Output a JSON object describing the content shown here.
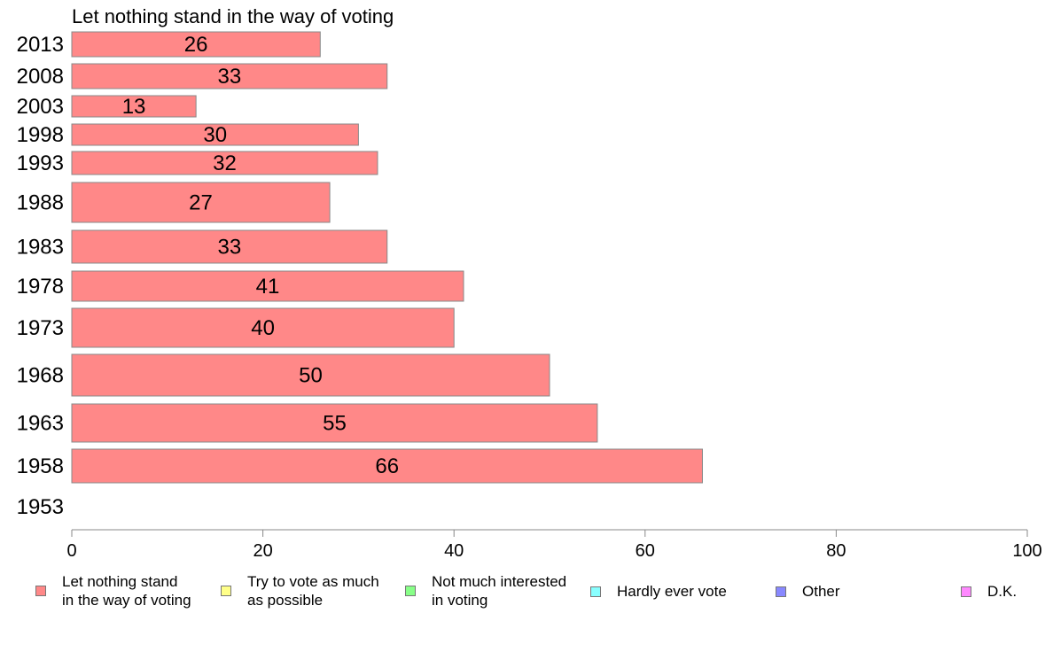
{
  "chart_data": {
    "type": "bar",
    "orientation": "horizontal",
    "title": "Let nothing stand in the way of voting",
    "categories": [
      "2013",
      "2008",
      "2003",
      "1998",
      "1993",
      "1988",
      "1983",
      "1978",
      "1973",
      "1968",
      "1963",
      "1958",
      "1953"
    ],
    "series": [
      {
        "name": "Let nothing stand\nin the way of voting",
        "color": "#ff8888",
        "values": [
          26,
          33,
          13,
          30,
          32,
          27,
          33,
          41,
          40,
          50,
          55,
          66,
          null
        ]
      }
    ],
    "data_labels": [
      "26",
      "33",
      "13",
      "30",
      "32",
      "27",
      "33",
      "41",
      "40",
      "50",
      "55",
      "66",
      ""
    ],
    "xlim": [
      0,
      100
    ],
    "xticks": [
      "0",
      "20",
      "40",
      "60",
      "80",
      "100"
    ],
    "grid": false,
    "legend_position": "bottom",
    "legend": [
      {
        "label": "Let nothing stand\nin the way of voting",
        "color": "#ff8888"
      },
      {
        "label": "Try to vote as much\nas possible",
        "color": "#ffff88"
      },
      {
        "label": "Not much interested\nin voting",
        "color": "#88ff88"
      },
      {
        "label": "Hardly ever vote",
        "color": "#88ffff"
      },
      {
        "label": "Other",
        "color": "#8888ff"
      },
      {
        "label": "D.K.",
        "color": "#ff88ff"
      }
    ]
  }
}
